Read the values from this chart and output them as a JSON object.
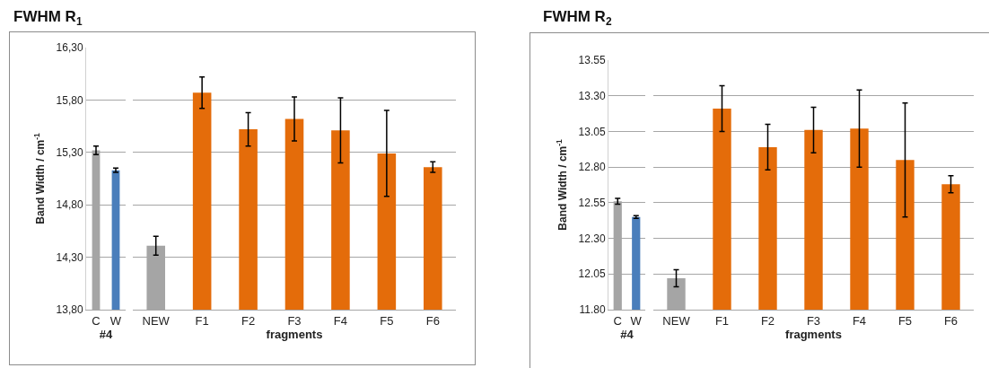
{
  "chart_data": [
    {
      "type": "bar",
      "title": "FWHM R$_{1}$",
      "ylabel": "Band Width / cm$^{-1}$",
      "xlabel": "#4",
      "categories": [
        "C",
        "W"
      ],
      "values": [
        15.32,
        15.13
      ],
      "colors": [
        "#a5a5a5",
        "#4a7ebb"
      ],
      "errors": [
        0.04,
        0.02
      ],
      "ylim": [
        13.8,
        16.3
      ],
      "yticks": [
        {
          "value": 13.8,
          "label": "13,80"
        },
        {
          "value": 14.3,
          "label": "14,30"
        },
        {
          "value": 14.8,
          "label": "14,80"
        },
        {
          "value": 15.3,
          "label": "15,30"
        },
        {
          "value": 15.8,
          "label": "15,80"
        },
        {
          "value": 16.3,
          "label": "16,30"
        }
      ],
      "grid": "y"
    },
    {
      "type": "bar",
      "xlabel": "fragments",
      "categories": [
        "NEW",
        "F1",
        "F2",
        "F3",
        "F4",
        "F5",
        "F6"
      ],
      "values": [
        14.41,
        15.87,
        15.52,
        15.62,
        15.51,
        15.29,
        15.16
      ],
      "colors": [
        "#a5a5a5",
        "#e46c0a",
        "#e46c0a",
        "#e46c0a",
        "#e46c0a",
        "#e46c0a",
        "#e46c0a"
      ],
      "errors": [
        0.09,
        0.15,
        0.16,
        0.21,
        0.31,
        0.41,
        0.05
      ],
      "ylim": [
        13.8,
        16.3
      ],
      "yticks": [
        {
          "value": 13.8,
          "label": null
        },
        {
          "value": 14.3,
          "label": null
        },
        {
          "value": 14.8,
          "label": null
        },
        {
          "value": 15.3,
          "label": null
        },
        {
          "value": 15.8,
          "label": null
        },
        {
          "value": 16.3,
          "label": null
        }
      ],
      "grid": "y",
      "tick_labels": "x"
    },
    {
      "type": "bar",
      "title": "FWHM R$_{2}$",
      "ylabel": "Band Width / cm$^{-1}$",
      "xlabel": "#4",
      "categories": [
        "C",
        "W"
      ],
      "values": [
        12.56,
        12.45
      ],
      "colors": [
        "#a5a5a5",
        "#4a7ebb"
      ],
      "errors": [
        0.02,
        0.01
      ],
      "ylim": [
        11.8,
        13.55
      ],
      "yticks": [
        {
          "value": 11.8,
          "label": "11.80"
        },
        {
          "value": 12.05,
          "label": "12.05"
        },
        {
          "value": 12.3,
          "label": "12.30"
        },
        {
          "value": 12.55,
          "label": "12.55"
        },
        {
          "value": 12.8,
          "label": "12.80"
        },
        {
          "value": 13.05,
          "label": "13.05"
        },
        {
          "value": 13.3,
          "label": "13.30"
        },
        {
          "value": 13.55,
          "label": "13.55"
        }
      ],
      "grid": "y"
    },
    {
      "type": "bar",
      "xlabel": "fragments",
      "categories": [
        "NEW",
        "F1",
        "F2",
        "F3",
        "F4",
        "F5",
        "F6"
      ],
      "values": [
        12.02,
        13.21,
        12.94,
        13.06,
        13.07,
        12.85,
        12.68
      ],
      "colors": [
        "#a5a5a5",
        "#e46c0a",
        "#e46c0a",
        "#e46c0a",
        "#e46c0a",
        "#e46c0a",
        "#e46c0a"
      ],
      "errors": [
        0.06,
        0.16,
        0.16,
        0.16,
        0.27,
        0.4,
        0.06
      ],
      "ylim": [
        11.8,
        13.55
      ],
      "yticks": [
        {
          "value": 11.8,
          "label": null
        },
        {
          "value": 12.05,
          "label": null
        },
        {
          "value": 12.3,
          "label": null
        },
        {
          "value": 12.55,
          "label": null
        },
        {
          "value": 12.8,
          "label": null
        },
        {
          "value": 13.05,
          "label": null
        },
        {
          "value": 13.3,
          "label": null
        },
        {
          "value": 13.55,
          "label": null
        }
      ],
      "grid": "y",
      "tick_labels": "x"
    }
  ]
}
